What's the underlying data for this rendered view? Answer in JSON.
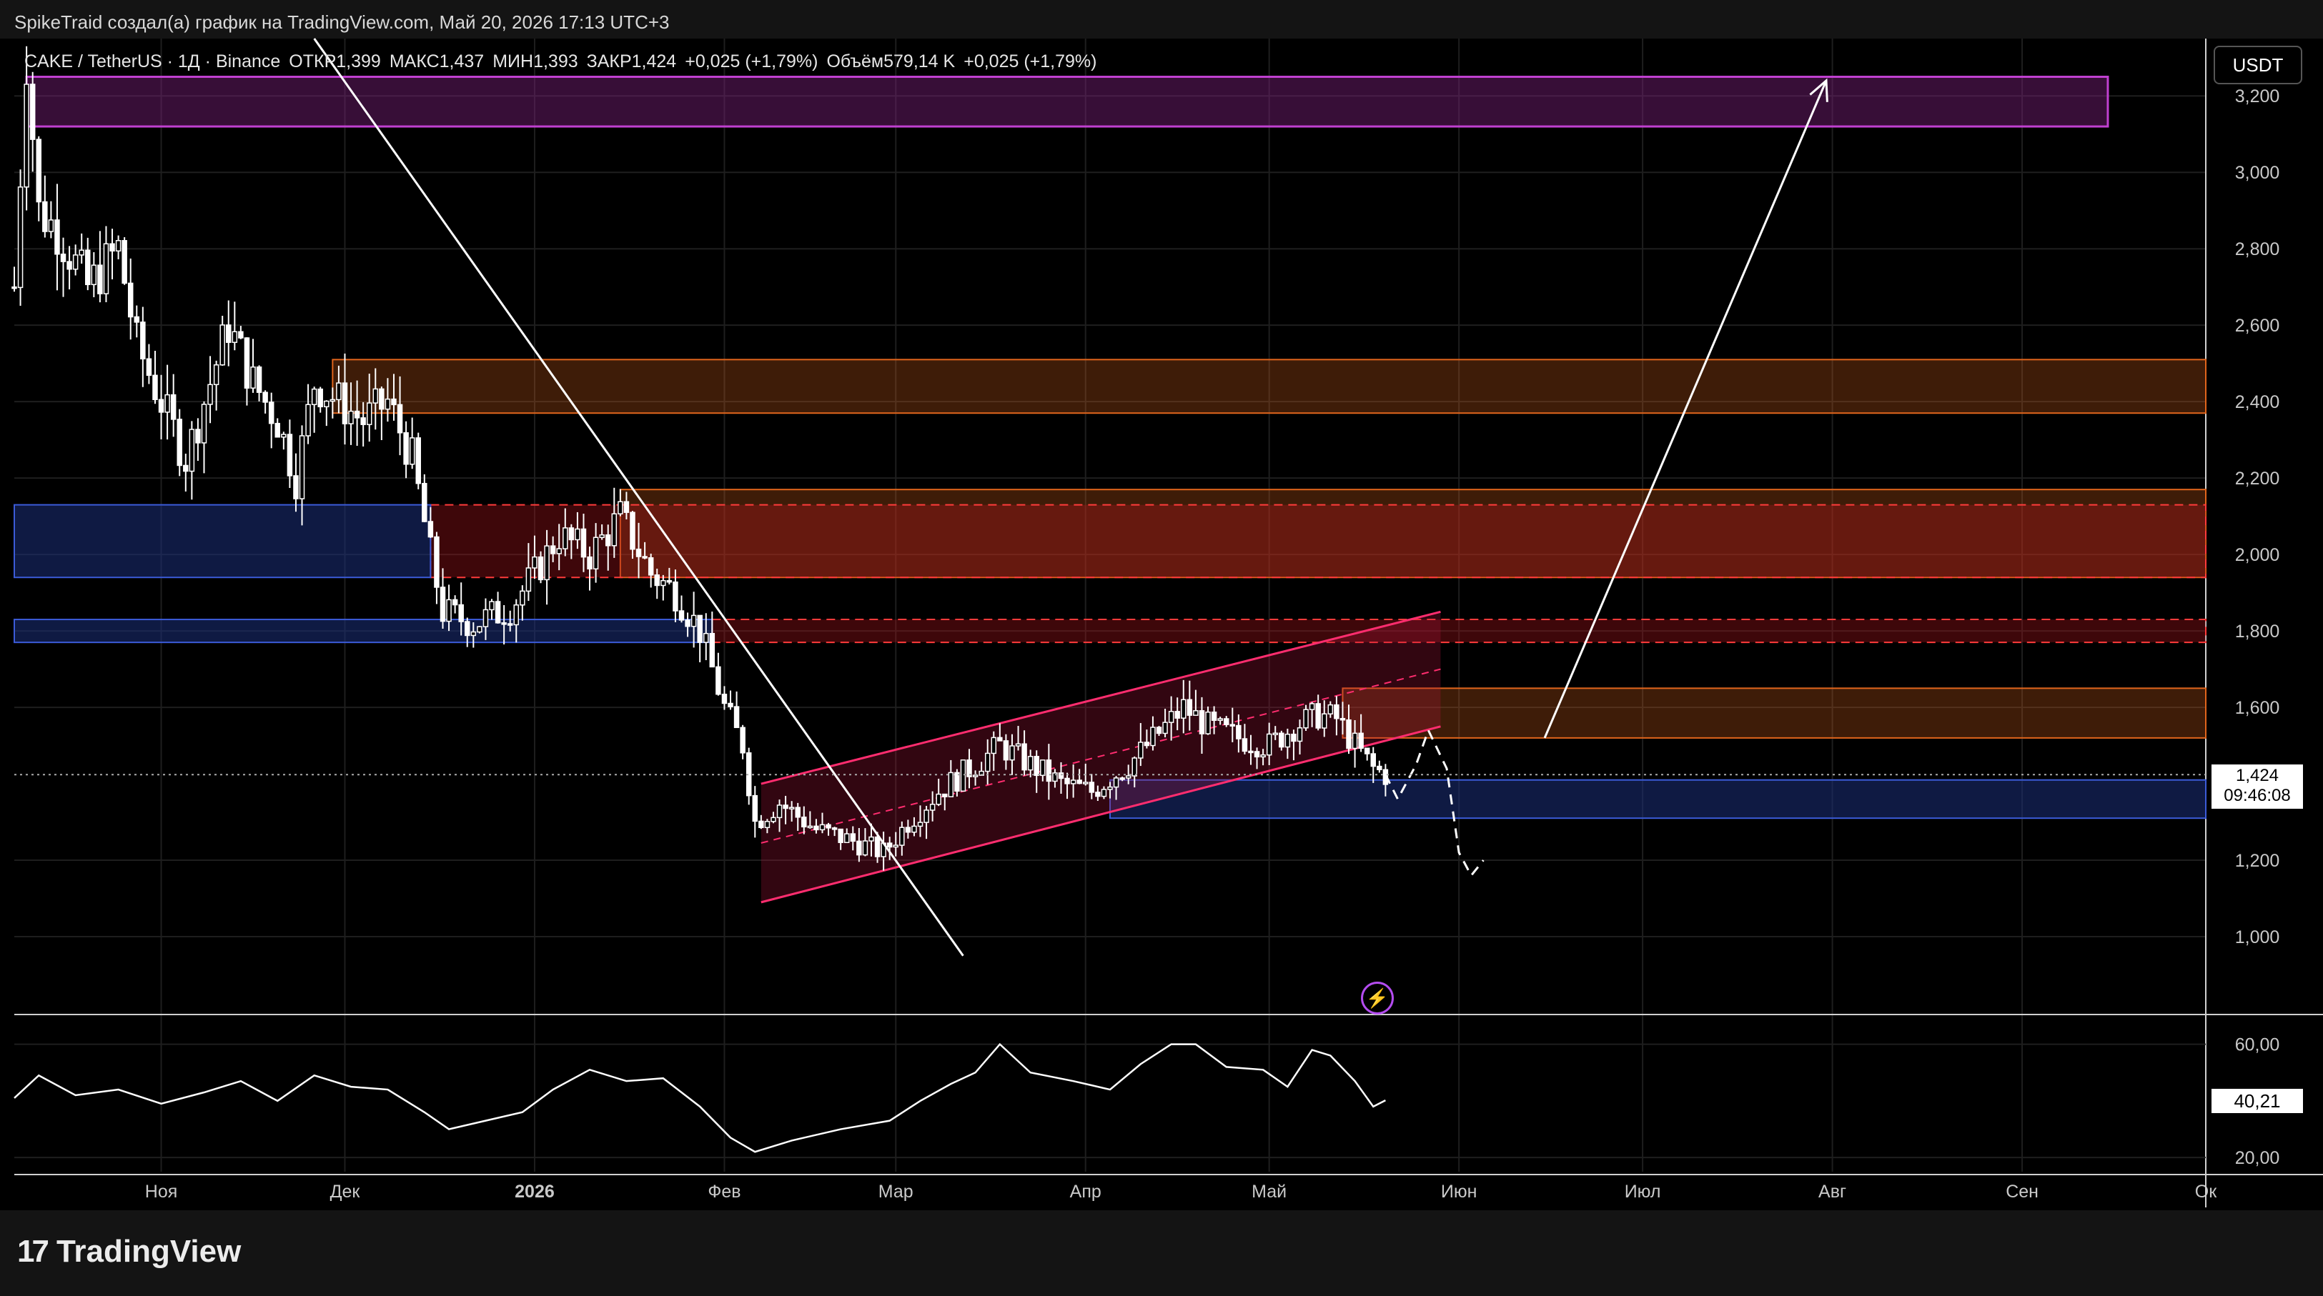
{
  "header": {
    "author_line": "SpikeTraid создал(а) график на TradingView.com, Май 20, 2026 17:13 UTC+3",
    "symbol": "CAKE / TetherUS · 1Д · Binance",
    "open": "ОТКР1,399",
    "high": "МАКС1,437",
    "low": "МИН1,393",
    "close": "ЗАКР1,424",
    "change": "+0,025 (+1,79%)",
    "volume": "Объём579,14 K",
    "change2": "+0,025 (+1,79%)",
    "currency": "USDT"
  },
  "price_tag": {
    "price": "1,424",
    "countdown": "09:46:08"
  },
  "rsi_tag": "40,21",
  "brand": "TradingView",
  "colors": {
    "background": "#000000",
    "candle": "#ffffff",
    "blue_zone": "#1c2f7a",
    "orange_zone": "#e0651c",
    "red_zone": "#b3141e",
    "pink_channel": "#ff2d6f",
    "purple_target": "#c040d0"
  },
  "chart_data": {
    "type": "candlestick",
    "y_range": [
      0.8,
      3.35
    ],
    "y_ticks": [
      {
        "value": 3.2,
        "label": "3,200"
      },
      {
        "value": 3.0,
        "label": "3,000"
      },
      {
        "value": 2.8,
        "label": "2,800"
      },
      {
        "value": 2.6,
        "label": "2,600"
      },
      {
        "value": 2.4,
        "label": "2,400"
      },
      {
        "value": 2.2,
        "label": "2,200"
      },
      {
        "value": 2.0,
        "label": "2,000"
      },
      {
        "value": 1.8,
        "label": "1,800"
      },
      {
        "value": 1.6,
        "label": "1,600"
      },
      {
        "value": 1.2,
        "label": "1,200"
      },
      {
        "value": 1.0,
        "label": "1,000"
      }
    ],
    "x_ticks": [
      {
        "date": "2025-11-01",
        "label": "Ноя",
        "bold": false
      },
      {
        "date": "2025-12-01",
        "label": "Дек",
        "bold": false
      },
      {
        "date": "2026-01-01",
        "label": "2026",
        "bold": true
      },
      {
        "date": "2026-02-01",
        "label": "Фев",
        "bold": false
      },
      {
        "date": "2026-03-01",
        "label": "Мар",
        "bold": false
      },
      {
        "date": "2026-04-01",
        "label": "Апр",
        "bold": false
      },
      {
        "date": "2026-05-01",
        "label": "Май",
        "bold": false
      },
      {
        "date": "2026-06-01",
        "label": "Июн",
        "bold": false
      },
      {
        "date": "2026-07-01",
        "label": "Июл",
        "bold": false
      },
      {
        "date": "2026-08-01",
        "label": "Авг",
        "bold": false
      },
      {
        "date": "2026-09-01",
        "label": "Сен",
        "bold": false
      },
      {
        "date": "2026-10-01",
        "label": "Ок",
        "bold": false
      }
    ],
    "x_range": [
      "2025-10-08",
      "2026-10-01"
    ],
    "current_price": 1.424,
    "close_path": [
      [
        "2025-10-08",
        2.7
      ],
      [
        "2025-10-10",
        3.3
      ],
      [
        "2025-10-12",
        2.9
      ],
      [
        "2025-10-15",
        2.85
      ],
      [
        "2025-10-20",
        2.7
      ],
      [
        "2025-10-25",
        2.8
      ],
      [
        "2025-10-28",
        2.55
      ],
      [
        "2025-11-01",
        2.4
      ],
      [
        "2025-11-05",
        2.25
      ],
      [
        "2025-11-08",
        2.4
      ],
      [
        "2025-11-12",
        2.6
      ],
      [
        "2025-11-16",
        2.45
      ],
      [
        "2025-11-20",
        2.35
      ],
      [
        "2025-11-23",
        2.2
      ],
      [
        "2025-11-26",
        2.45
      ],
      [
        "2025-11-30",
        2.4
      ],
      [
        "2025-12-04",
        2.35
      ],
      [
        "2025-12-08",
        2.4
      ],
      [
        "2025-12-12",
        2.25
      ],
      [
        "2025-12-15",
        2.0
      ],
      [
        "2025-12-17",
        1.85
      ],
      [
        "2025-12-22",
        1.82
      ],
      [
        "2025-12-28",
        1.86
      ],
      [
        "2026-01-01",
        1.95
      ],
      [
        "2026-01-05",
        2.05
      ],
      [
        "2026-01-10",
        2.0
      ],
      [
        "2026-01-15",
        2.1
      ],
      [
        "2026-01-20",
        1.95
      ],
      [
        "2026-01-24",
        1.9
      ],
      [
        "2026-01-28",
        1.8
      ],
      [
        "2026-02-01",
        1.6
      ],
      [
        "2026-02-04",
        1.5
      ],
      [
        "2026-02-06",
        1.3
      ],
      [
        "2026-02-10",
        1.35
      ],
      [
        "2026-02-16",
        1.28
      ],
      [
        "2026-02-22",
        1.25
      ],
      [
        "2026-02-27",
        1.22
      ],
      [
        "2026-03-03",
        1.3
      ],
      [
        "2026-03-08",
        1.38
      ],
      [
        "2026-03-14",
        1.45
      ],
      [
        "2026-03-18",
        1.5
      ],
      [
        "2026-03-23",
        1.45
      ],
      [
        "2026-03-28",
        1.4
      ],
      [
        "2026-04-02",
        1.38
      ],
      [
        "2026-04-08",
        1.45
      ],
      [
        "2026-04-14",
        1.55
      ],
      [
        "2026-04-17",
        1.6
      ],
      [
        "2026-04-21",
        1.55
      ],
      [
        "2026-04-26",
        1.52
      ],
      [
        "2026-05-01",
        1.5
      ],
      [
        "2026-05-05",
        1.55
      ],
      [
        "2026-05-09",
        1.58
      ],
      [
        "2026-05-12",
        1.57
      ],
      [
        "2026-05-15",
        1.5
      ],
      [
        "2026-05-18",
        1.44
      ],
      [
        "2026-05-20",
        1.424
      ]
    ],
    "rsi": {
      "y_range": [
        15,
        70
      ],
      "ticks": [
        {
          "value": 60,
          "label": "60,00"
        },
        {
          "value": 20,
          "label": "20,00"
        }
      ],
      "path": [
        [
          "2025-10-08",
          41
        ],
        [
          "2025-10-12",
          49
        ],
        [
          "2025-10-18",
          42
        ],
        [
          "2025-10-25",
          44
        ],
        [
          "2025-11-01",
          39
        ],
        [
          "2025-11-08",
          43
        ],
        [
          "2025-11-14",
          47
        ],
        [
          "2025-11-20",
          40
        ],
        [
          "2025-11-26",
          49
        ],
        [
          "2025-12-02",
          45
        ],
        [
          "2025-12-08",
          44
        ],
        [
          "2025-12-14",
          36
        ],
        [
          "2025-12-18",
          30
        ],
        [
          "2025-12-24",
          33
        ],
        [
          "2025-12-30",
          36
        ],
        [
          "2026-01-04",
          44
        ],
        [
          "2026-01-10",
          51
        ],
        [
          "2026-01-16",
          47
        ],
        [
          "2026-01-22",
          48
        ],
        [
          "2026-01-28",
          38
        ],
        [
          "2026-02-02",
          27
        ],
        [
          "2026-02-06",
          22
        ],
        [
          "2026-02-12",
          26
        ],
        [
          "2026-02-20",
          30
        ],
        [
          "2026-02-28",
          33
        ],
        [
          "2026-03-05",
          40
        ],
        [
          "2026-03-10",
          46
        ],
        [
          "2026-03-14",
          50
        ],
        [
          "2026-03-18",
          60
        ],
        [
          "2026-03-23",
          50
        ],
        [
          "2026-03-30",
          47
        ],
        [
          "2026-04-05",
          44
        ],
        [
          "2026-04-10",
          53
        ],
        [
          "2026-04-15",
          60
        ],
        [
          "2026-04-19",
          60
        ],
        [
          "2026-04-24",
          52
        ],
        [
          "2026-04-30",
          51
        ],
        [
          "2026-05-04",
          45
        ],
        [
          "2026-05-08",
          58
        ],
        [
          "2026-05-11",
          56
        ],
        [
          "2026-05-15",
          47
        ],
        [
          "2026-05-18",
          38
        ],
        [
          "2026-05-20",
          40.21
        ]
      ]
    },
    "zones": [
      {
        "kind": "target",
        "y1": 3.12,
        "y2": 3.25,
        "from": "2025-10-10",
        "to": "2026-09-15"
      },
      {
        "kind": "orange",
        "y1": 2.37,
        "y2": 2.51,
        "from": "2025-11-29",
        "to": "2026-10-01"
      },
      {
        "kind": "orange",
        "y1": 1.94,
        "y2": 2.17,
        "from": "2026-01-15",
        "to": "2026-10-01"
      },
      {
        "kind": "red",
        "y1": 1.94,
        "y2": 2.13,
        "from": "2025-12-15",
        "to": "2026-10-01"
      },
      {
        "kind": "red",
        "y1": 1.77,
        "y2": 1.83,
        "from": "2026-01-30",
        "to": "2026-10-01"
      },
      {
        "kind": "blue",
        "y1": 1.94,
        "y2": 2.13,
        "from": "2025-10-08",
        "to": "2025-12-15"
      },
      {
        "kind": "blue",
        "y1": 1.77,
        "y2": 1.83,
        "from": "2025-10-08",
        "to": "2026-01-30"
      },
      {
        "kind": "orange",
        "y1": 1.52,
        "y2": 1.65,
        "from": "2026-05-13",
        "to": "2026-10-01"
      },
      {
        "kind": "blue",
        "y1": 1.31,
        "y2": 1.41,
        "from": "2026-04-05",
        "to": "2026-10-01"
      }
    ],
    "channel": {
      "lower": [
        [
          "2026-02-07",
          1.09
        ],
        [
          "2026-05-29",
          1.55
        ]
      ],
      "upper": [
        [
          "2026-02-07",
          1.4
        ],
        [
          "2026-05-29",
          1.85
        ]
      ]
    },
    "downtrend": [
      [
        "2025-11-26",
        3.35
      ],
      [
        "2026-03-12",
        0.95
      ]
    ],
    "projection_path": [
      [
        "2026-05-20",
        1.424
      ],
      [
        "2026-05-22",
        1.36
      ],
      [
        "2026-05-25",
        1.45
      ],
      [
        "2026-05-27",
        1.54
      ],
      [
        "2026-05-30",
        1.44
      ],
      [
        "2026-06-01",
        1.22
      ],
      [
        "2026-06-03",
        1.16
      ],
      [
        "2026-06-05",
        1.2
      ]
    ],
    "target_arrow": [
      [
        "2026-06-15",
        1.52
      ],
      [
        "2026-07-31",
        3.24
      ]
    ]
  }
}
